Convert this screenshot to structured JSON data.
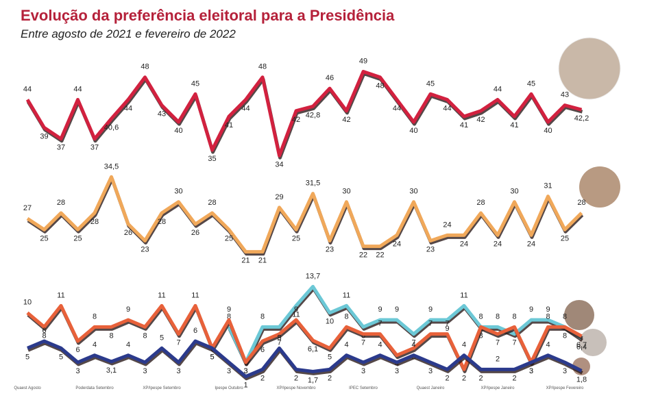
{
  "title": "Evolução da preferência eleitoral para a Presidência",
  "subtitle": "Entre agosto de 2021 e fevereiro de 2022",
  "chart_data": [
    {
      "type": "line",
      "ylim": [
        30,
        52
      ],
      "series": [
        {
          "color": "#d2213f",
          "values": [
            44,
            39,
            37,
            44,
            37,
            40.6,
            44,
            48,
            43,
            40,
            45,
            35,
            41,
            44,
            48,
            34,
            42,
            42.8,
            46,
            42,
            49,
            48,
            44,
            40,
            45,
            44,
            41,
            42,
            44,
            41,
            45,
            40,
            43,
            42.2
          ],
          "value_labels": [
            "44",
            "39",
            "37",
            "44",
            "37",
            "40,6",
            "44",
            "48",
            "43",
            "40",
            "45",
            "35",
            "41",
            "44",
            "48",
            "34",
            "42",
            "42,8",
            "46",
            "42",
            "49",
            "48",
            "44",
            "40",
            "45",
            "44",
            "41",
            "42",
            "44",
            "41",
            "45",
            "40",
            "43",
            "42,2"
          ]
        }
      ]
    },
    {
      "type": "line",
      "ylim": [
        18,
        37
      ],
      "series": [
        {
          "color": "#f0a85a",
          "values": [
            27,
            25,
            28,
            25,
            28,
            34.5,
            26,
            23,
            28,
            30,
            26,
            28,
            25,
            21,
            21,
            29,
            25,
            31.5,
            23,
            30,
            22,
            22,
            24,
            30,
            23,
            24,
            24,
            28,
            24,
            30,
            24,
            31,
            25,
            28
          ],
          "value_labels": [
            "27",
            "25",
            "28",
            "25",
            "28",
            "34,5",
            "26",
            "23",
            "28",
            "30",
            "26",
            "28",
            "25",
            "21",
            "21",
            "29",
            "25",
            "31,5",
            "23",
            "30",
            "22",
            "22",
            "24",
            "30",
            "23",
            "24",
            "24",
            "28",
            "24",
            "30",
            "24",
            "31",
            "25",
            "28"
          ]
        }
      ]
    },
    {
      "type": "line",
      "ylim": [
        0,
        15
      ],
      "categories": [
        "Quaest Agosto",
        null,
        null,
        null,
        "Poderdata Setembro",
        null,
        null,
        null,
        "XP/Ipespe Setembro",
        null,
        null,
        null,
        "Ipespe Outubro",
        null,
        null,
        null,
        "XP/Ipespe Novembro",
        null,
        null,
        null,
        "IPEC Setembro",
        null,
        null,
        null,
        "Quaest Janeiro",
        null,
        null,
        null,
        "XP/Ipespe Janeiro",
        null,
        null,
        null,
        "XP/Ipespe Fevereiro",
        null
      ],
      "series": [
        {
          "color": "#6cc8d6",
          "values": [
            null,
            null,
            null,
            null,
            null,
            null,
            null,
            null,
            null,
            null,
            null,
            null,
            8,
            3,
            8,
            8,
            11,
            13.7,
            10,
            11,
            8,
            9,
            9,
            7,
            9,
            9,
            11,
            8,
            8,
            7,
            9,
            9,
            8,
            6.4
          ],
          "value_labels": [
            null,
            null,
            null,
            null,
            null,
            null,
            null,
            null,
            null,
            null,
            null,
            null,
            "8",
            "3",
            "8",
            "8",
            "11",
            "13,7",
            "10",
            "11",
            "8",
            "9",
            "9",
            "7",
            "9",
            "9",
            "11",
            "8",
            "8",
            "7",
            "9",
            "9",
            "8",
            "6,4"
          ]
        },
        {
          "color": "#e8613a",
          "values": [
            10,
            8,
            11,
            6,
            8,
            8,
            9,
            8,
            11,
            7,
            11,
            5,
            9,
            3,
            6,
            7,
            9,
            6.1,
            5,
            8,
            7,
            7,
            4,
            5,
            7,
            7,
            2,
            8,
            7,
            8,
            3,
            8,
            8,
            6.7
          ],
          "value_labels": [
            "10",
            "8",
            "11",
            "6",
            "8",
            "8",
            "9",
            "8",
            "11",
            "7",
            "11",
            "5",
            "9",
            "3",
            "6",
            "7",
            "9",
            "6,1",
            "5",
            "8",
            "7",
            "7",
            "4",
            "5",
            "7",
            "7",
            "2",
            "8",
            "7",
            "8",
            "3",
            "8",
            "8",
            "6,7"
          ]
        },
        {
          "color": "#2b3a8c",
          "values": [
            5,
            6,
            5,
            3,
            4,
            3.1,
            4,
            3,
            5,
            3,
            6,
            5,
            3,
            1,
            2,
            5,
            2,
            1.7,
            2,
            4,
            3,
            4,
            3,
            4,
            3,
            2,
            4,
            2,
            2,
            2,
            3,
            4,
            3,
            1.8
          ],
          "value_labels": [
            "5",
            "6",
            "5",
            "3",
            "4",
            "3,1",
            "4",
            "3",
            "5",
            "3",
            "6",
            "5",
            "3",
            "1",
            "2",
            "5",
            "2",
            "1,7",
            "2",
            "4",
            "3",
            "4",
            "3",
            "4",
            "3",
            "2",
            "4",
            "2",
            "2",
            "2",
            "3",
            "4",
            "3",
            "1,8"
          ]
        }
      ]
    }
  ]
}
